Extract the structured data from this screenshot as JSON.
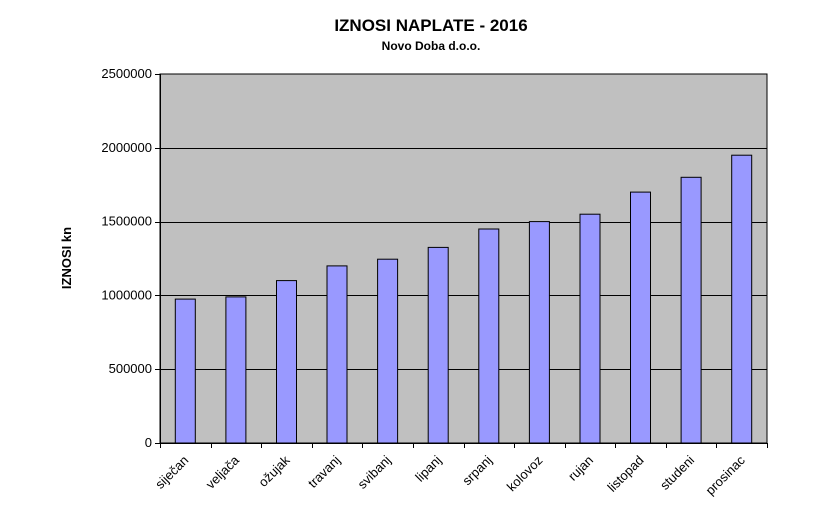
{
  "colors": {
    "plot_background": "#c0c0c0",
    "bar_fill": "#9999ff",
    "bar_stroke": "#000000",
    "gridline": "#000000",
    "axis": "#000000"
  },
  "chart_data": {
    "type": "bar",
    "title": "IZNOSI NAPLATE - 2016",
    "subtitle": "Novo Doba d.o.o.",
    "xlabel": "",
    "ylabel": "IZNOSI kn",
    "ylim": [
      0,
      2500000
    ],
    "yticks": [
      "0",
      "500000",
      "1000000",
      "1500000",
      "2000000",
      "2500000"
    ],
    "ytick_values": [
      0,
      500000,
      1000000,
      1500000,
      2000000,
      2500000
    ],
    "grid": true,
    "legend": "none",
    "categories": [
      "siječan",
      "veljača",
      "ožujak",
      "travanj",
      "svibanj",
      "lipanj",
      "srpanj",
      "kolovoz",
      "rujan",
      "listopad",
      "studeni",
      "prosinac"
    ],
    "values": [
      975000,
      990000,
      1100000,
      1200000,
      1245000,
      1325000,
      1450000,
      1500000,
      1550000,
      1700000,
      1800000,
      1950000
    ]
  }
}
